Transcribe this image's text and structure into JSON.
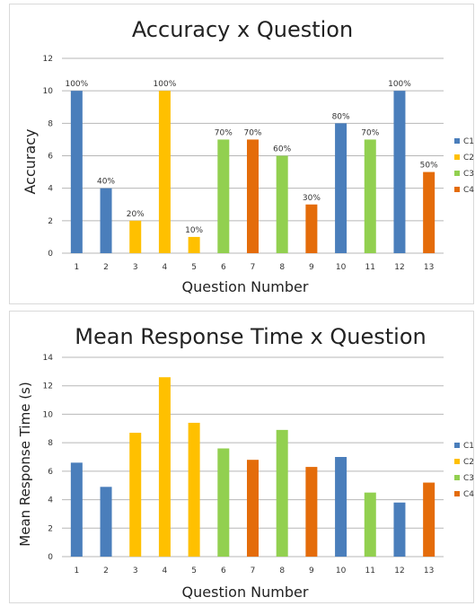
{
  "colors": {
    "C1": "#4a7ebb",
    "C2": "#ffc000",
    "C3": "#92d050",
    "C4": "#e46c0a"
  },
  "chart_data": [
    {
      "type": "bar",
      "title": "Accuracy x Question",
      "xlabel": "Question Number",
      "ylabel": "Accuracy",
      "categories": [
        "1",
        "2",
        "3",
        "4",
        "5",
        "6",
        "7",
        "8",
        "9",
        "10",
        "11",
        "12",
        "13"
      ],
      "values": [
        10,
        4,
        2,
        10,
        1,
        7,
        7,
        6,
        3,
        8,
        7,
        10,
        5
      ],
      "groups": [
        "C1",
        "C1",
        "C2",
        "C2",
        "C2",
        "C3",
        "C4",
        "C3",
        "C4",
        "C1",
        "C3",
        "C1",
        "C4"
      ],
      "data_labels": [
        "100%",
        "40%",
        "20%",
        "100%",
        "10%",
        "70%",
        "70%",
        "60%",
        "30%",
        "80%",
        "70%",
        "100%",
        "50%"
      ],
      "ylim": [
        0,
        12
      ],
      "yticks": [
        "0",
        "2",
        "4",
        "6",
        "8",
        "10",
        "12"
      ],
      "grid": true,
      "legend_position": "right",
      "legend": [
        "C1",
        "C2",
        "C3",
        "C4"
      ]
    },
    {
      "type": "bar",
      "title": "Mean Response Time x Question",
      "xlabel": "Question Number",
      "ylabel": "Mean Response Time (s)",
      "categories": [
        "1",
        "2",
        "3",
        "4",
        "5",
        "6",
        "7",
        "8",
        "9",
        "10",
        "11",
        "12",
        "13"
      ],
      "values": [
        6.6,
        4.9,
        8.7,
        12.6,
        9.4,
        7.6,
        6.8,
        8.9,
        6.3,
        7.0,
        4.5,
        3.8,
        5.2
      ],
      "groups": [
        "C1",
        "C1",
        "C2",
        "C2",
        "C2",
        "C3",
        "C4",
        "C3",
        "C4",
        "C1",
        "C3",
        "C1",
        "C4"
      ],
      "data_labels": [],
      "ylim": [
        0,
        14
      ],
      "yticks": [
        "0",
        "2",
        "4",
        "6",
        "8",
        "10",
        "12",
        "14"
      ],
      "grid": true,
      "legend_position": "right",
      "legend": [
        "C1",
        "C2",
        "C3",
        "C4"
      ]
    }
  ]
}
